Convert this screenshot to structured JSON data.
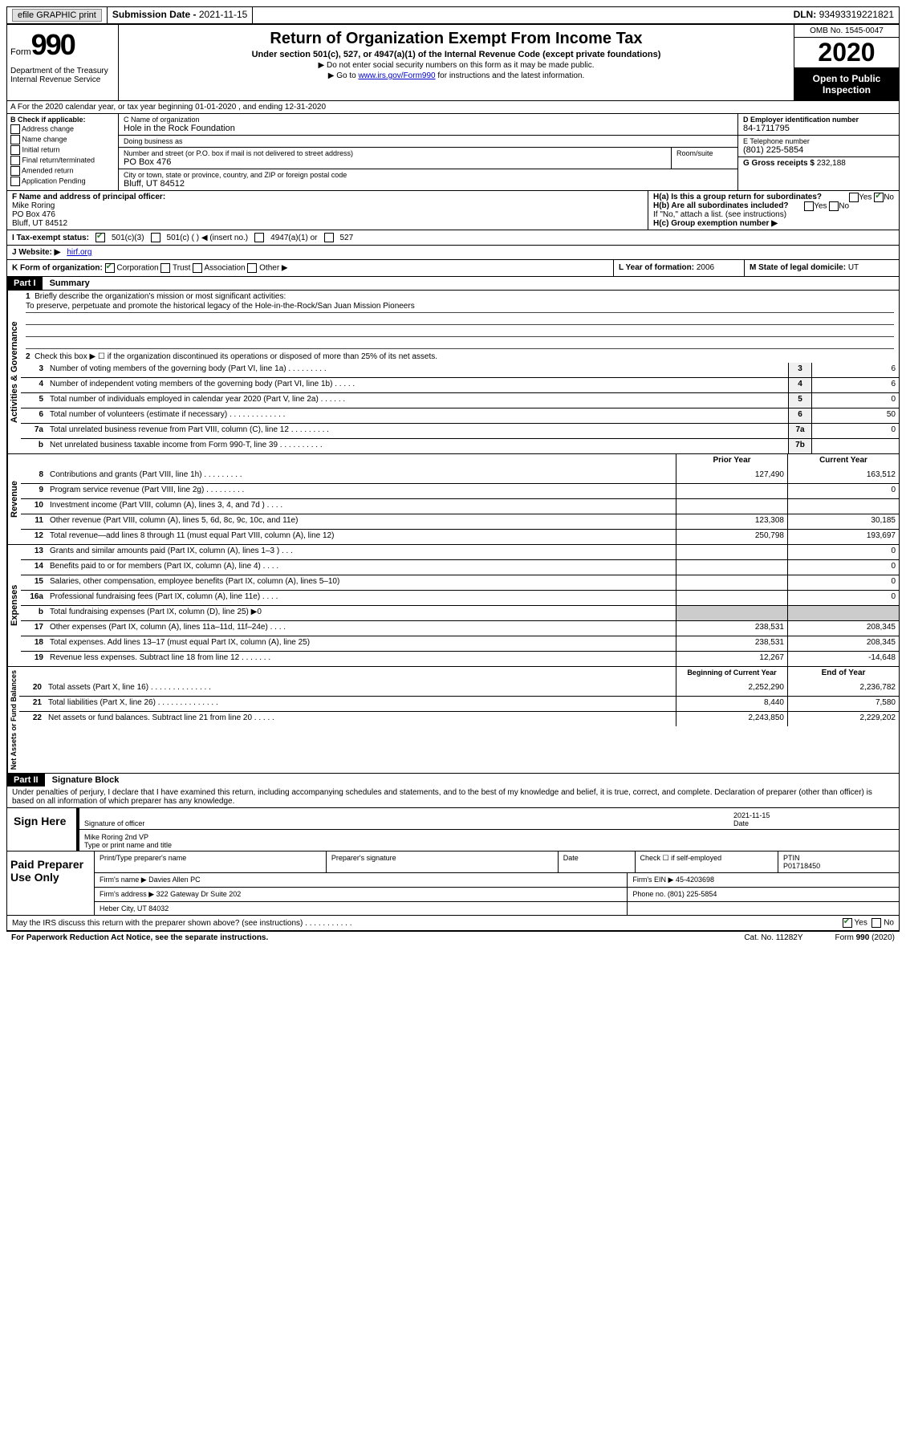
{
  "topbar": {
    "efile": "efile GRAPHIC print",
    "submission_label": "Submission Date - ",
    "submission_date": "2021-11-15",
    "dln_label": "DLN: ",
    "dln": "93493319221821"
  },
  "header": {
    "form_word": "Form",
    "form_number": "990",
    "dept": "Department of the Treasury\nInternal Revenue Service",
    "title": "Return of Organization Exempt From Income Tax",
    "subtitle": "Under section 501(c), 527, or 4947(a)(1) of the Internal Revenue Code (except private foundations)",
    "note1": "▶ Do not enter social security numbers on this form as it may be made public.",
    "note2_pre": "▶ Go to ",
    "note2_link": "www.irs.gov/Form990",
    "note2_post": " for instructions and the latest information.",
    "omb": "OMB No. 1545-0047",
    "year": "2020",
    "open": "Open to Public Inspection"
  },
  "row_a": "A For the 2020 calendar year, or tax year beginning 01-01-2020   , and ending 12-31-2020",
  "col_b": {
    "label": "B Check if applicable:",
    "items": [
      "Address change",
      "Name change",
      "Initial return",
      "Final return/terminated",
      "Amended return",
      "Application Pending"
    ]
  },
  "col_c": {
    "name_label": "C Name of organization",
    "name": "Hole in the Rock Foundation",
    "dba_label": "Doing business as",
    "dba": "",
    "addr_label": "Number and street (or P.O. box if mail is not delivered to street address)",
    "room_label": "Room/suite",
    "addr": "PO Box 476",
    "city_label": "City or town, state or province, country, and ZIP or foreign postal code",
    "city": "Bluff, UT  84512"
  },
  "col_d": {
    "ein_label": "D Employer identification number",
    "ein": "84-1711795",
    "phone_label": "E Telephone number",
    "phone": "(801) 225-5854",
    "gross_label": "G Gross receipts $ ",
    "gross": "232,188"
  },
  "f": {
    "label": "F  Name and address of principal officer:",
    "name": "Mike Roring",
    "addr1": "PO Box 476",
    "addr2": "Bluff, UT  84512"
  },
  "h": {
    "a_label": "H(a)  Is this a group return for subordinates?",
    "a_yes": "Yes",
    "a_no": "No",
    "b_label": "H(b)  Are all subordinates included?",
    "b_yes": "Yes",
    "b_no": "No",
    "b_note": "If \"No,\" attach a list. (see instructions)",
    "c_label": "H(c)  Group exemption number ▶"
  },
  "i": {
    "label": "I  Tax-exempt status:",
    "opts": [
      "501(c)(3)",
      "501(c) (  ) ◀ (insert no.)",
      "4947(a)(1) or",
      "527"
    ]
  },
  "j": {
    "label": "J  Website: ▶ ",
    "val": "hirf.org"
  },
  "k": {
    "label": "K Form of organization:",
    "opts": [
      "Corporation",
      "Trust",
      "Association",
      "Other ▶"
    ],
    "l_label": "L Year of formation: ",
    "l_val": "2006",
    "m_label": "M State of legal domicile: ",
    "m_val": "UT"
  },
  "part1": {
    "header": "Part I",
    "title": "Summary"
  },
  "gov": {
    "vlabel": "Activities & Governance",
    "l1_label": "Briefly describe the organization's mission or most significant activities:",
    "l1_text": "To preserve, perpetuate and promote the historical legacy of the Hole-in-the-Rock/San Juan Mission Pioneers",
    "l2": "Check this box ▶ ☐  if the organization discontinued its operations or disposed of more than 25% of its net assets.",
    "lines": [
      {
        "n": "3",
        "desc": "Number of voting members of the governing body (Part VI, line 1a)   .    .    .    .    .    .    .    .    .",
        "box": "3",
        "val": "6"
      },
      {
        "n": "4",
        "desc": "Number of independent voting members of the governing body (Part VI, line 1b)   .    .    .    .    .",
        "box": "4",
        "val": "6"
      },
      {
        "n": "5",
        "desc": "Total number of individuals employed in calendar year 2020 (Part V, line 2a)   .    .    .    .    .    .",
        "box": "5",
        "val": "0"
      },
      {
        "n": "6",
        "desc": "Total number of volunteers (estimate if necessary)   .    .    .    .    .    .    .    .    .    .    .    .    .",
        "box": "6",
        "val": "50"
      },
      {
        "n": "7a",
        "desc": "Total unrelated business revenue from Part VIII, column (C), line 12   .    .    .    .    .    .    .    .    .",
        "box": "7a",
        "val": "0"
      },
      {
        "n": "b",
        "desc": "Net unrelated business taxable income from Form 990-T, line 39   .    .    .    .    .    .    .    .    .    .",
        "box": "7b",
        "val": ""
      }
    ]
  },
  "rev": {
    "vlabel": "Revenue",
    "header_py": "Prior Year",
    "header_cy": "Current Year",
    "lines": [
      {
        "n": "8",
        "desc": "Contributions and grants (Part VIII, line 1h)   .    .    .    .    .    .    .    .    .",
        "py": "127,490",
        "cy": "163,512"
      },
      {
        "n": "9",
        "desc": "Program service revenue (Part VIII, line 2g)   .    .    .    .    .    .    .    .    .",
        "py": "",
        "cy": "0"
      },
      {
        "n": "10",
        "desc": "Investment income (Part VIII, column (A), lines 3, 4, and 7d )   .    .    .    .",
        "py": "",
        "cy": ""
      },
      {
        "n": "11",
        "desc": "Other revenue (Part VIII, column (A), lines 5, 6d, 8c, 9c, 10c, and 11e)",
        "py": "123,308",
        "cy": "30,185"
      },
      {
        "n": "12",
        "desc": "Total revenue—add lines 8 through 11 (must equal Part VIII, column (A), line 12)",
        "py": "250,798",
        "cy": "193,697"
      }
    ]
  },
  "exp": {
    "vlabel": "Expenses",
    "lines": [
      {
        "n": "13",
        "desc": "Grants and similar amounts paid (Part IX, column (A), lines 1–3 )   .    .    .",
        "py": "",
        "cy": "0"
      },
      {
        "n": "14",
        "desc": "Benefits paid to or for members (Part IX, column (A), line 4)   .    .    .    .",
        "py": "",
        "cy": "0"
      },
      {
        "n": "15",
        "desc": "Salaries, other compensation, employee benefits (Part IX, column (A), lines 5–10)",
        "py": "",
        "cy": "0"
      },
      {
        "n": "16a",
        "desc": "Professional fundraising fees (Part IX, column (A), line 11e)   .    .    .    .",
        "py": "",
        "cy": "0"
      },
      {
        "n": "b",
        "desc": "Total fundraising expenses (Part IX, column (D), line 25) ▶0",
        "py": "shaded",
        "cy": "shaded"
      },
      {
        "n": "17",
        "desc": "Other expenses (Part IX, column (A), lines 11a–11d, 11f–24e)   .    .    .    .",
        "py": "238,531",
        "cy": "208,345"
      },
      {
        "n": "18",
        "desc": "Total expenses. Add lines 13–17 (must equal Part IX, column (A), line 25)",
        "py": "238,531",
        "cy": "208,345"
      },
      {
        "n": "19",
        "desc": "Revenue less expenses. Subtract line 18 from line 12   .    .    .    .    .    .    .",
        "py": "12,267",
        "cy": "-14,648"
      }
    ]
  },
  "net": {
    "vlabel": "Net Assets or Fund Balances",
    "header_py": "Beginning of Current Year",
    "header_cy": "End of Year",
    "lines": [
      {
        "n": "20",
        "desc": "Total assets (Part X, line 16)   .    .    .    .    .    .    .    .    .    .    .    .    .    .",
        "py": "2,252,290",
        "cy": "2,236,782"
      },
      {
        "n": "21",
        "desc": "Total liabilities (Part X, line 26)   .    .    .    .    .    .    .    .    .    .    .    .    .    .",
        "py": "8,440",
        "cy": "7,580"
      },
      {
        "n": "22",
        "desc": "Net assets or fund balances. Subtract line 21 from line 20   .    .    .    .    .",
        "py": "2,243,850",
        "cy": "2,229,202"
      }
    ]
  },
  "part2": {
    "header": "Part II",
    "title": "Signature Block",
    "decl": "Under penalties of perjury, I declare that I have examined this return, including accompanying schedules and statements, and to the best of my knowledge and belief, it is true, correct, and complete. Declaration of preparer (other than officer) is based on all information of which preparer has any knowledge."
  },
  "sign": {
    "label": "Sign Here",
    "sig_label": "Signature of officer",
    "date_label": "Date",
    "date": "2021-11-15",
    "name": "Mike Roring  2nd VP",
    "name_label": "Type or print name and title"
  },
  "prep": {
    "label": "Paid Preparer Use Only",
    "r1": {
      "c1": "Print/Type preparer's name",
      "c2": "Preparer's signature",
      "c3": "Date",
      "c4": "Check ☐ if self-employed",
      "c5_label": "PTIN",
      "c5": "P01718450"
    },
    "r2": {
      "label": "Firm's name    ▶ ",
      "val": "Davies Allen PC",
      "ein_label": "Firm's EIN ▶ ",
      "ein": "45-4203698"
    },
    "r3": {
      "label": "Firm's address ▶ ",
      "val": "322 Gateway Dr Suite 202",
      "phone_label": "Phone no. ",
      "phone": "(801) 225-5854"
    },
    "r3b": "Heber City, UT  84032"
  },
  "discuss": {
    "q": "May the IRS discuss this return with the preparer shown above? (see instructions)   .    .    .    .    .    .    .    .    .    .    .",
    "yes": "Yes",
    "no": "No"
  },
  "footer": {
    "left": "For Paperwork Reduction Act Notice, see the separate instructions.",
    "mid": "Cat. No. 11282Y",
    "right": "Form 990 (2020)"
  }
}
